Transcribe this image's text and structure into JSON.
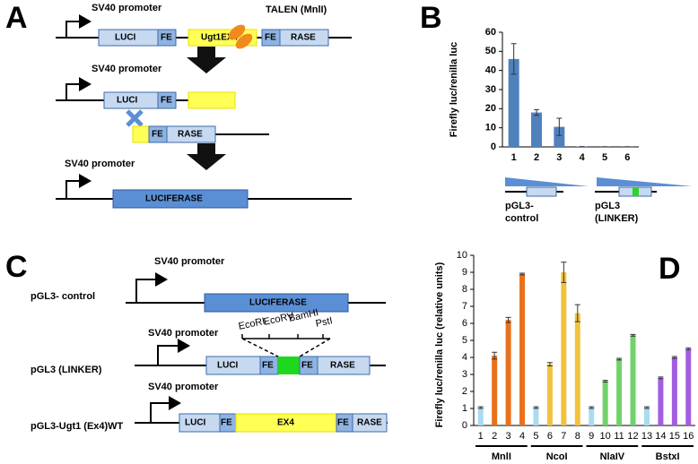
{
  "panel_labels": [
    "A",
    "B",
    "C",
    "D"
  ],
  "diagram_a": {
    "promoter": "SV40 promoter",
    "talen": "TALEN (MnlI)",
    "luci": "LUCI",
    "fe": "FE",
    "ex4": "Ugt1EX4",
    "rase": "RASE",
    "luciferase": "LUCIFERASE"
  },
  "constructs_b": [
    [
      "pGL3-",
      "control"
    ],
    [
      "pGL3",
      "(LINKER)"
    ]
  ],
  "diagram_c": {
    "rows": [
      "pGL3- control",
      "pGL3 (LINKER)",
      "pGL3-Ugt1 (Ex4)WT"
    ],
    "promoter": "SV40 promoter",
    "luciferase": "LUCIFERASE",
    "luci": "LUCI",
    "fe": "FE",
    "rase": "RASE",
    "ex4": "EX4",
    "sites": [
      "EcoRI",
      "EcoRV",
      "BamHI",
      "PstI"
    ]
  },
  "chart_data": [
    {
      "type": "bar",
      "y_label": "Firefly luc/renilla luc",
      "categories": [
        "1",
        "2",
        "3",
        "4",
        "5",
        "6"
      ],
      "series": [
        {
          "values": [
            46,
            18,
            10.5,
            0.2,
            0.1,
            0.1
          ],
          "errors": [
            8,
            1.5,
            4.5,
            0,
            0,
            0
          ],
          "color": "#4f81bd"
        }
      ],
      "ylim": [
        0,
        60
      ],
      "yticks": [
        0,
        10,
        20,
        30,
        40,
        50,
        60
      ]
    },
    {
      "type": "bar",
      "y_label": "Firefly luc/renilla luc (relative units)",
      "categories": [
        "1",
        "2",
        "3",
        "4",
        "5",
        "6",
        "7",
        "8",
        "9",
        "10",
        "11",
        "12",
        "13",
        "14",
        "15",
        "16"
      ],
      "series": [
        {
          "values": [
            1.05,
            4.1,
            6.2,
            8.9,
            1.05,
            3.6,
            9.0,
            6.6,
            1.05,
            2.6,
            3.9,
            5.3,
            1.05,
            2.8,
            4.0,
            4.5
          ],
          "errors": [
            0.05,
            0.2,
            0.15,
            0.05,
            0.05,
            0.1,
            0.6,
            0.5,
            0.05,
            0.05,
            0.05,
            0.05,
            0.05,
            0.05,
            0.05,
            0.05
          ],
          "colors": [
            "#a8dcef",
            "#e8711b",
            "#e8711b",
            "#e8711b",
            "#a8dcef",
            "#f2c23c",
            "#f2c23c",
            "#f2c23c",
            "#a8dcef",
            "#6fd36a",
            "#6fd36a",
            "#6fd36a",
            "#a8dcef",
            "#a25ee0",
            "#a25ee0",
            "#a25ee0"
          ]
        }
      ],
      "groups": [
        "MnlI",
        "NcoI",
        "NlaIV",
        "BstxI"
      ],
      "ylim": [
        0,
        10
      ],
      "yticks": [
        0,
        1,
        2,
        3,
        4,
        5,
        6,
        7,
        8,
        9,
        10
      ]
    }
  ]
}
